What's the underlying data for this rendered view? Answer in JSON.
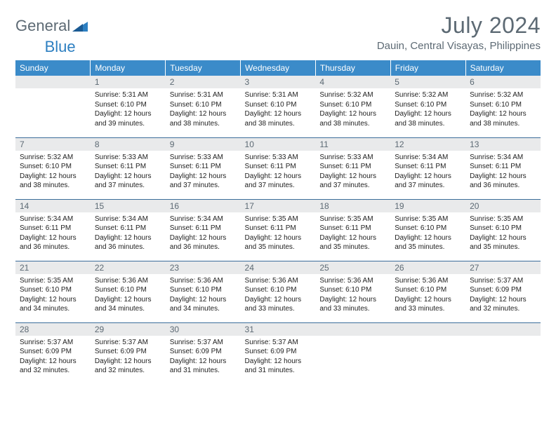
{
  "logo": {
    "text1": "General",
    "text2": "Blue"
  },
  "title": "July 2024",
  "location": "Dauin, Central Visayas, Philippines",
  "colors": {
    "header_bg": "#3b8bc9",
    "header_text": "#ffffff",
    "daynum_bg": "#e9eaeb",
    "text_gray": "#5d6a74",
    "rule": "#3b6d9a",
    "logo_blue": "#2d7fc1"
  },
  "weekdays": [
    "Sunday",
    "Monday",
    "Tuesday",
    "Wednesday",
    "Thursday",
    "Friday",
    "Saturday"
  ],
  "weeks": [
    [
      {
        "n": "",
        "lines": []
      },
      {
        "n": "1",
        "lines": [
          "Sunrise: 5:31 AM",
          "Sunset: 6:10 PM",
          "Daylight: 12 hours and 39 minutes."
        ]
      },
      {
        "n": "2",
        "lines": [
          "Sunrise: 5:31 AM",
          "Sunset: 6:10 PM",
          "Daylight: 12 hours and 38 minutes."
        ]
      },
      {
        "n": "3",
        "lines": [
          "Sunrise: 5:31 AM",
          "Sunset: 6:10 PM",
          "Daylight: 12 hours and 38 minutes."
        ]
      },
      {
        "n": "4",
        "lines": [
          "Sunrise: 5:32 AM",
          "Sunset: 6:10 PM",
          "Daylight: 12 hours and 38 minutes."
        ]
      },
      {
        "n": "5",
        "lines": [
          "Sunrise: 5:32 AM",
          "Sunset: 6:10 PM",
          "Daylight: 12 hours and 38 minutes."
        ]
      },
      {
        "n": "6",
        "lines": [
          "Sunrise: 5:32 AM",
          "Sunset: 6:10 PM",
          "Daylight: 12 hours and 38 minutes."
        ]
      }
    ],
    [
      {
        "n": "7",
        "lines": [
          "Sunrise: 5:32 AM",
          "Sunset: 6:10 PM",
          "Daylight: 12 hours and 38 minutes."
        ]
      },
      {
        "n": "8",
        "lines": [
          "Sunrise: 5:33 AM",
          "Sunset: 6:11 PM",
          "Daylight: 12 hours and 37 minutes."
        ]
      },
      {
        "n": "9",
        "lines": [
          "Sunrise: 5:33 AM",
          "Sunset: 6:11 PM",
          "Daylight: 12 hours and 37 minutes."
        ]
      },
      {
        "n": "10",
        "lines": [
          "Sunrise: 5:33 AM",
          "Sunset: 6:11 PM",
          "Daylight: 12 hours and 37 minutes."
        ]
      },
      {
        "n": "11",
        "lines": [
          "Sunrise: 5:33 AM",
          "Sunset: 6:11 PM",
          "Daylight: 12 hours and 37 minutes."
        ]
      },
      {
        "n": "12",
        "lines": [
          "Sunrise: 5:34 AM",
          "Sunset: 6:11 PM",
          "Daylight: 12 hours and 37 minutes."
        ]
      },
      {
        "n": "13",
        "lines": [
          "Sunrise: 5:34 AM",
          "Sunset: 6:11 PM",
          "Daylight: 12 hours and 36 minutes."
        ]
      }
    ],
    [
      {
        "n": "14",
        "lines": [
          "Sunrise: 5:34 AM",
          "Sunset: 6:11 PM",
          "Daylight: 12 hours and 36 minutes."
        ]
      },
      {
        "n": "15",
        "lines": [
          "Sunrise: 5:34 AM",
          "Sunset: 6:11 PM",
          "Daylight: 12 hours and 36 minutes."
        ]
      },
      {
        "n": "16",
        "lines": [
          "Sunrise: 5:34 AM",
          "Sunset: 6:11 PM",
          "Daylight: 12 hours and 36 minutes."
        ]
      },
      {
        "n": "17",
        "lines": [
          "Sunrise: 5:35 AM",
          "Sunset: 6:11 PM",
          "Daylight: 12 hours and 35 minutes."
        ]
      },
      {
        "n": "18",
        "lines": [
          "Sunrise: 5:35 AM",
          "Sunset: 6:11 PM",
          "Daylight: 12 hours and 35 minutes."
        ]
      },
      {
        "n": "19",
        "lines": [
          "Sunrise: 5:35 AM",
          "Sunset: 6:10 PM",
          "Daylight: 12 hours and 35 minutes."
        ]
      },
      {
        "n": "20",
        "lines": [
          "Sunrise: 5:35 AM",
          "Sunset: 6:10 PM",
          "Daylight: 12 hours and 35 minutes."
        ]
      }
    ],
    [
      {
        "n": "21",
        "lines": [
          "Sunrise: 5:35 AM",
          "Sunset: 6:10 PM",
          "Daylight: 12 hours and 34 minutes."
        ]
      },
      {
        "n": "22",
        "lines": [
          "Sunrise: 5:36 AM",
          "Sunset: 6:10 PM",
          "Daylight: 12 hours and 34 minutes."
        ]
      },
      {
        "n": "23",
        "lines": [
          "Sunrise: 5:36 AM",
          "Sunset: 6:10 PM",
          "Daylight: 12 hours and 34 minutes."
        ]
      },
      {
        "n": "24",
        "lines": [
          "Sunrise: 5:36 AM",
          "Sunset: 6:10 PM",
          "Daylight: 12 hours and 33 minutes."
        ]
      },
      {
        "n": "25",
        "lines": [
          "Sunrise: 5:36 AM",
          "Sunset: 6:10 PM",
          "Daylight: 12 hours and 33 minutes."
        ]
      },
      {
        "n": "26",
        "lines": [
          "Sunrise: 5:36 AM",
          "Sunset: 6:10 PM",
          "Daylight: 12 hours and 33 minutes."
        ]
      },
      {
        "n": "27",
        "lines": [
          "Sunrise: 5:37 AM",
          "Sunset: 6:09 PM",
          "Daylight: 12 hours and 32 minutes."
        ]
      }
    ],
    [
      {
        "n": "28",
        "lines": [
          "Sunrise: 5:37 AM",
          "Sunset: 6:09 PM",
          "Daylight: 12 hours and 32 minutes."
        ]
      },
      {
        "n": "29",
        "lines": [
          "Sunrise: 5:37 AM",
          "Sunset: 6:09 PM",
          "Daylight: 12 hours and 32 minutes."
        ]
      },
      {
        "n": "30",
        "lines": [
          "Sunrise: 5:37 AM",
          "Sunset: 6:09 PM",
          "Daylight: 12 hours and 31 minutes."
        ]
      },
      {
        "n": "31",
        "lines": [
          "Sunrise: 5:37 AM",
          "Sunset: 6:09 PM",
          "Daylight: 12 hours and 31 minutes."
        ]
      },
      {
        "n": "",
        "lines": []
      },
      {
        "n": "",
        "lines": []
      },
      {
        "n": "",
        "lines": []
      }
    ]
  ]
}
